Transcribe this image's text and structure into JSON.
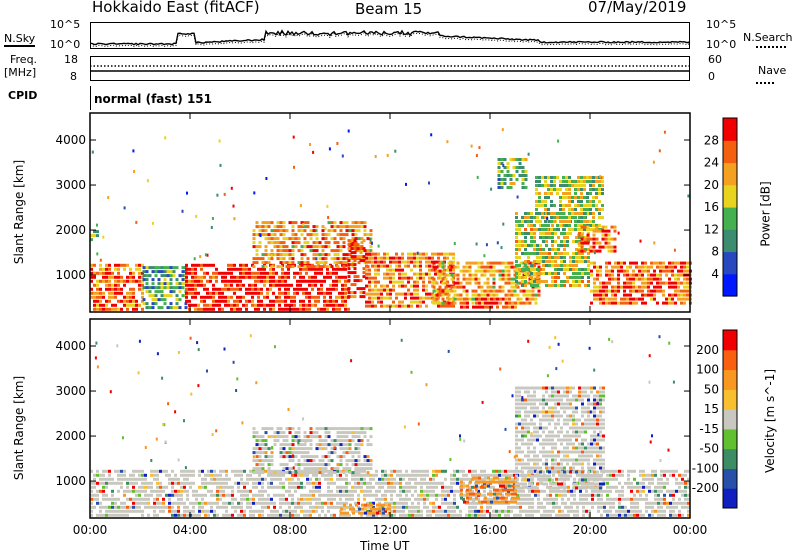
{
  "header": {
    "title": "Hokkaido East (fitACF)",
    "beam": "Beam 15",
    "date": "07/May/2019"
  },
  "strip_panels": {
    "nsky_label": "N.Sky",
    "nsearch_label": "N.Search",
    "noise_ticks_left": [
      "10^5",
      "10^0"
    ],
    "noise_ticks_right": [
      "10^5",
      "10^0"
    ],
    "freq_label": "Freq.",
    "freq_unit": "[MHz]",
    "freq_ticks": [
      "18",
      "8"
    ],
    "nave_label": "Nave",
    "nave_ticks": [
      "60",
      "0"
    ],
    "cpid_label": "CPID",
    "cpid_value": "normal (fast) 151"
  },
  "chart_data": [
    {
      "type": "heatmap",
      "name": "power",
      "ylabel": "Slant Range [km]",
      "xlabel": "Time UT",
      "x_ticks": [
        "00:00",
        "04:00",
        "08:00",
        "12:00",
        "16:00",
        "20:00",
        "00:00"
      ],
      "xlim_hours": [
        0,
        24
      ],
      "y_ticks": [
        1000,
        2000,
        3000,
        4000
      ],
      "ylim": [
        180,
        4600
      ],
      "colorbar": {
        "label": "Power [dB]",
        "ticks": [
          4,
          8,
          12,
          16,
          20,
          24,
          28
        ],
        "range": [
          0,
          32
        ],
        "colors": [
          "#0018ff",
          "#2848c0",
          "#3c8c70",
          "#44b050",
          "#e8d420",
          "#f4a020",
          "#f46010",
          "#f00000"
        ]
      },
      "regions": [
        {
          "t0": 0.0,
          "t1": 2.1,
          "r0": 250,
          "r1": 1250,
          "level": 0.8
        },
        {
          "t0": 0.0,
          "t1": 0.3,
          "r0": 1800,
          "r1": 2000,
          "level": 0.45
        },
        {
          "t0": 2.1,
          "t1": 3.8,
          "r0": 300,
          "r1": 1200,
          "level": 0.35
        },
        {
          "t0": 3.8,
          "t1": 10.3,
          "r0": 250,
          "r1": 1250,
          "level": 0.95
        },
        {
          "t0": 6.5,
          "t1": 11.2,
          "r0": 1200,
          "r1": 2200,
          "level": 0.7
        },
        {
          "t0": 10.3,
          "t1": 11.0,
          "r0": 500,
          "r1": 1800,
          "level": 0.9
        },
        {
          "t0": 11.0,
          "t1": 14.5,
          "r0": 300,
          "r1": 1500,
          "level": 0.75
        },
        {
          "t0": 13.7,
          "t1": 18.0,
          "r0": 400,
          "r1": 1300,
          "level": 0.7
        },
        {
          "t0": 14.8,
          "t1": 17.0,
          "r0": 250,
          "r1": 500,
          "level": 0.9
        },
        {
          "t0": 17.0,
          "t1": 20.0,
          "r0": 800,
          "r1": 2400,
          "level": 0.55
        },
        {
          "t0": 17.8,
          "t1": 20.5,
          "r0": 2000,
          "r1": 3200,
          "level": 0.5
        },
        {
          "t0": 16.3,
          "t1": 17.5,
          "r0": 2900,
          "r1": 3600,
          "level": 0.45
        },
        {
          "t0": 19.5,
          "t1": 21.0,
          "r0": 1500,
          "r1": 2100,
          "level": 0.8
        },
        {
          "t0": 20.0,
          "t1": 24.0,
          "r0": 400,
          "r1": 1300,
          "level": 0.8
        }
      ]
    },
    {
      "type": "heatmap",
      "name": "velocity",
      "ylabel": "Slant Range [km]",
      "xlabel": "Time UT",
      "x_ticks": [
        "00:00",
        "04:00",
        "08:00",
        "12:00",
        "16:00",
        "20:00",
        "00:00"
      ],
      "xlim_hours": [
        0,
        24
      ],
      "y_ticks": [
        1000,
        2000,
        3000,
        4000
      ],
      "ylim": [
        180,
        4600
      ],
      "colorbar": {
        "label": "Velocity [m s^-1]",
        "ticks": [
          200,
          100,
          50,
          15,
          -15,
          -50,
          -100,
          -200
        ],
        "colors": [
          "#1020c0",
          "#2850a8",
          "#3c8c64",
          "#60c030",
          "#c8c8c0",
          "#f8c030",
          "#f89820",
          "#f86010",
          "#f00000"
        ]
      },
      "regions": [
        {
          "t0": 0.0,
          "t1": 24.0,
          "r0": 250,
          "r1": 1250,
          "level": 0.5
        },
        {
          "t0": 6.5,
          "t1": 11.2,
          "r0": 1200,
          "r1": 2200,
          "level": 0.5
        },
        {
          "t0": 14.8,
          "t1": 17.2,
          "r0": 500,
          "r1": 1100,
          "level": 0.75
        },
        {
          "t0": 17.0,
          "t1": 20.5,
          "r0": 800,
          "r1": 3100,
          "level": 0.5
        },
        {
          "t0": 10.0,
          "t1": 12.0,
          "r0": 250,
          "r1": 500,
          "level": 0.72
        }
      ]
    }
  ]
}
